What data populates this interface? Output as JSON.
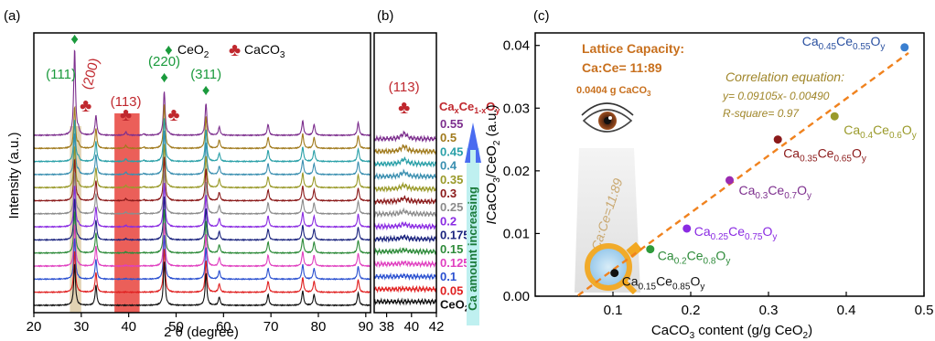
{
  "panels": {
    "a": {
      "label": "(a)"
    },
    "b": {
      "label": "(b)"
    },
    "c": {
      "label": "(c)"
    }
  },
  "colors": {
    "ceo2_marker": "#1a9a3c",
    "caco3_marker": "#c0282e",
    "fit_line": "#f0821e",
    "highlight_113": "#e8433c",
    "highlight_ceo2": "#d8c49a",
    "arrow": "#4a6cf0",
    "arrow_box": "#bff0f0"
  },
  "chart_data": [
    {
      "type": "line",
      "panel": "a",
      "xlabel": "2 θ (degree)",
      "ylabel": "Intensity (a.u.)",
      "xlim": [
        20,
        91
      ],
      "xticks": [
        20,
        30,
        40,
        50,
        60,
        70,
        80,
        90
      ],
      "legend": {
        "ceo2": {
          "symbol": "♦",
          "label": "CeO",
          "sub": "2"
        },
        "caco3": {
          "symbol": "♣",
          "label": "CaCO",
          "sub": "3"
        }
      },
      "peak_labels": [
        {
          "hkl": "(111)",
          "two_theta": 28.6,
          "phase": "CeO2"
        },
        {
          "hkl": "(200)",
          "two_theta": 29.4,
          "phase": "CaCO3"
        },
        {
          "hkl": "(113)",
          "two_theta": 39.4,
          "phase": "CaCO3"
        },
        {
          "hkl": "(220)",
          "two_theta": 47.5,
          "phase": "CeO2"
        },
        {
          "hkl": "(311)",
          "two_theta": 56.3,
          "phase": "CeO2"
        }
      ],
      "ceo2_peaks": [
        28.6,
        33.1,
        47.5,
        56.3,
        59.1,
        69.4,
        76.7,
        79.1,
        88.4
      ],
      "caco3_peaks": [
        29.4,
        39.4,
        43.2,
        48.5
      ],
      "series_title": {
        "main": "Ca",
        "sub1": "x",
        "mid": "Ce",
        "sub2": "1-x",
        "end": "O",
        "sub3": "y"
      },
      "series": [
        {
          "name": "0.55",
          "color": "#7d2f8e"
        },
        {
          "name": "0.5",
          "color": "#a07a1c"
        },
        {
          "name": "0.45",
          "color": "#2aa0a8"
        },
        {
          "name": "0.4",
          "color": "#3a8fb0"
        },
        {
          "name": "0.35",
          "color": "#9a9a2a"
        },
        {
          "name": "0.3",
          "color": "#8b1a1a"
        },
        {
          "name": "0.25",
          "color": "#8c8c8c"
        },
        {
          "name": "0.2",
          "color": "#8a2be2"
        },
        {
          "name": "0.175",
          "color": "#1a237e"
        },
        {
          "name": "0.15",
          "color": "#2e8b3a"
        },
        {
          "name": "0.125",
          "color": "#e040c0"
        },
        {
          "name": "0.1",
          "color": "#2a50d0"
        },
        {
          "name": "0.05",
          "color": "#e02020"
        },
        {
          "name": "CeO2",
          "color": "#111111"
        }
      ],
      "arrow_text": "Ca amount increasing"
    },
    {
      "type": "line",
      "panel": "b",
      "xlim": [
        37,
        42
      ],
      "xticks": [
        38,
        40,
        42
      ],
      "peak_label": {
        "hkl": "(113)",
        "two_theta": 39.4
      }
    },
    {
      "type": "scatter",
      "panel": "c",
      "xlabel_pre": "CaCO",
      "xlabel_sub": "3",
      "xlabel_post": " content (g/g CeO",
      "xlabel_sub2": "2",
      "xlabel_end": ")",
      "ylabel_i": "I",
      "ylabel_pre": "CaCO",
      "ylabel_sub": "3",
      "ylabel_mid": "/CeO",
      "ylabel_sub2": "2",
      "ylabel_end": " (a.u.)",
      "xlim": [
        0,
        0.5
      ],
      "ylim": [
        0,
        0.042
      ],
      "xticks": [
        "0.1",
        "0.2",
        "0.3",
        "0.4",
        "0.5"
      ],
      "yticks": [
        "0.00",
        "0.01",
        "0.02",
        "0.03",
        "0.04"
      ],
      "points": [
        {
          "x": 0.102,
          "y": 0.0037,
          "color": "#111111",
          "l": {
            "a": "Ca",
            "s1": "0.15",
            "b": "Ce",
            "s2": "0.85",
            "c": "O",
            "s3": "y"
          },
          "lcolor": "#111111"
        },
        {
          "x": 0.148,
          "y": 0.0075,
          "color": "#2e9a3a",
          "l": {
            "a": "Ca",
            "s1": "0.2",
            "b": "Ce",
            "s2": "0.8",
            "c": "O",
            "s3": "y"
          },
          "lcolor": "#2e8b3a"
        },
        {
          "x": 0.195,
          "y": 0.0108,
          "color": "#8a2be2",
          "l": {
            "a": "Ca",
            "s1": "0.25",
            "b": "Ce",
            "s2": "0.75",
            "c": "O",
            "s3": "y"
          },
          "lcolor": "#8a2be2"
        },
        {
          "x": 0.25,
          "y": 0.0185,
          "color": "#9a2ab0",
          "l": {
            "a": "Ca",
            "s1": "0.3",
            "b": "Ce",
            "s2": "0.7",
            "c": "O",
            "s3": "y"
          },
          "lcolor": "#7d2f8e"
        },
        {
          "x": 0.312,
          "y": 0.025,
          "color": "#8b1a1a",
          "l": {
            "a": "Ca",
            "s1": "0.35",
            "b": "Ce",
            "s2": "0.65",
            "c": "O",
            "s3": "y"
          },
          "lcolor": "#8b1a1a"
        },
        {
          "x": 0.385,
          "y": 0.0287,
          "color": "#9a9a2a",
          "l": {
            "a": "Ca",
            "s1": "0.4",
            "b": "Ce",
            "s2": "0.6",
            "c": "O",
            "s3": "y"
          },
          "lcolor": "#9a9a2a"
        },
        {
          "x": 0.475,
          "y": 0.0397,
          "color": "#3a7fd0",
          "l": {
            "a": "Ca",
            "s1": "0.45",
            "b": "Ce",
            "s2": "0.55",
            "c": "O",
            "s3": "y"
          },
          "lcolor": "#2a50a0"
        }
      ],
      "fit": {
        "slope": 0.09105,
        "intercept": -0.0049,
        "x_from": 0.055,
        "x_to": 0.48
      },
      "lattice_title": "Lattice Capacity:",
      "lattice_ratio": "Ca:Ce= 11:89",
      "lattice_mass_value": "0.0404 g CaCO",
      "lattice_mass_sub": "3",
      "corr_title": "Correlation equation:",
      "corr_eq": "y= 0.09105x- 0.00490",
      "corr_r2": "R-square= 0.97",
      "lens_text": "Ca:Ce=11:89",
      "lattice_color": "#c8701e",
      "corr_color": "#a0862a"
    }
  ]
}
